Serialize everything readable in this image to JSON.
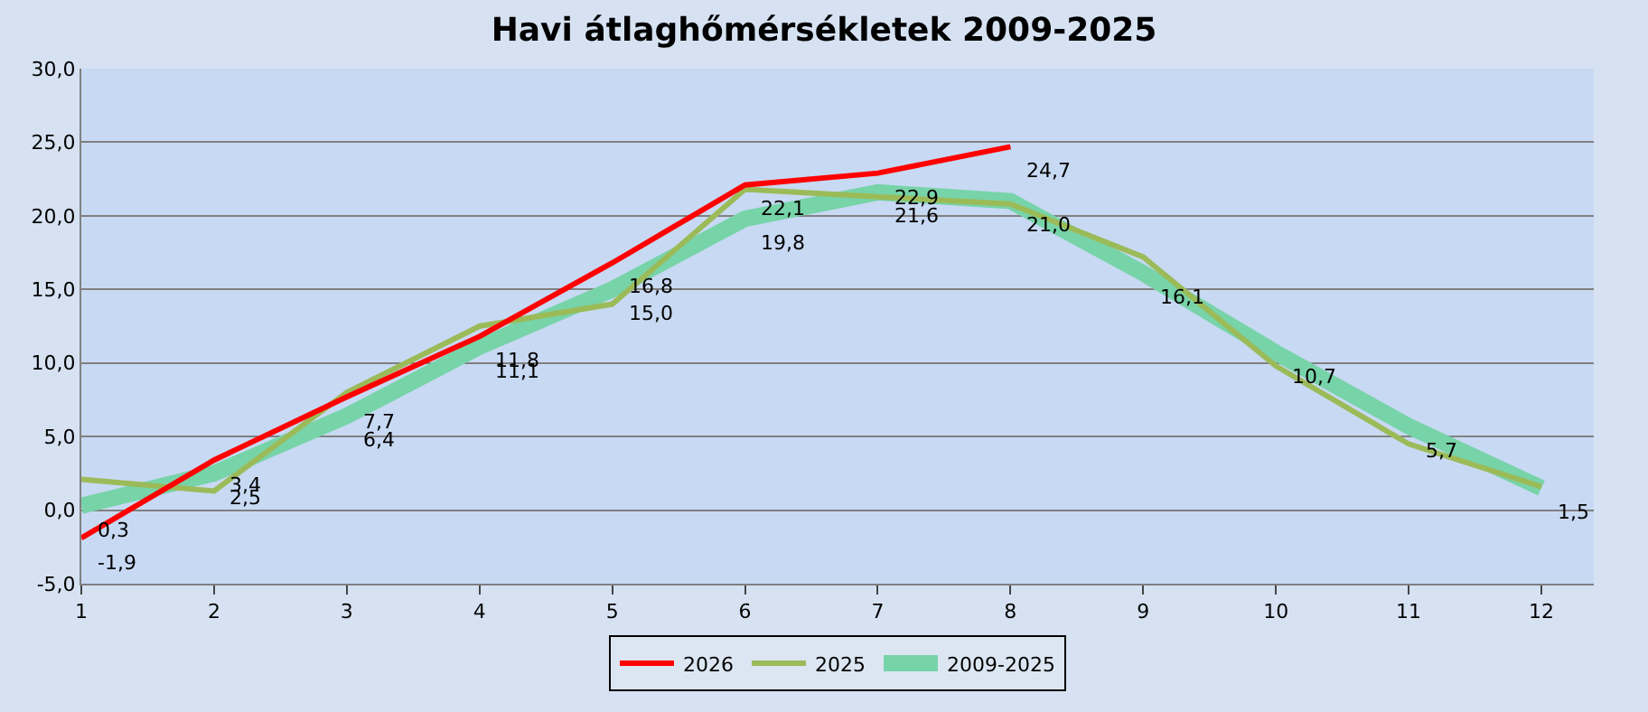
{
  "chart_data": {
    "type": "line",
    "title": "Havi átlaghőmérsékletek 2009-2025",
    "categories": [
      "1",
      "2",
      "3",
      "4",
      "5",
      "6",
      "7",
      "8",
      "9",
      "10",
      "11",
      "12"
    ],
    "series": [
      {
        "name": "2026",
        "color": "#ff0000",
        "values": [
          -1.9,
          3.4,
          7.7,
          11.8,
          16.8,
          22.1,
          22.9,
          24.7,
          null,
          null,
          null,
          null
        ],
        "value_labels": [
          "-1,9",
          "3,4",
          "7,7",
          "11,8",
          "16,8",
          "22,1",
          "22,9",
          "24,7",
          null,
          null,
          null,
          null
        ]
      },
      {
        "name": "2025",
        "color": "#9bbb59",
        "values": [
          2.1,
          1.3,
          8.0,
          12.5,
          14.0,
          21.8,
          21.3,
          20.8,
          17.2,
          9.8,
          4.5,
          1.6
        ]
      },
      {
        "name": "2009-2025",
        "color": "#77d3a8",
        "values": [
          0.3,
          2.5,
          6.4,
          11.1,
          15.0,
          19.8,
          21.6,
          21.0,
          16.1,
          10.7,
          5.7,
          1.5
        ],
        "value_labels": [
          "0,3",
          "2,5",
          "6,4",
          "11,1",
          "15,0",
          "19,8",
          "21,6",
          "21,0",
          "16,1",
          "10,7",
          "5,7",
          "1,5"
        ]
      }
    ],
    "ylim": [
      -5,
      30
    ],
    "yticks": [
      {
        "value": -5,
        "label": "-5,0"
      },
      {
        "value": 0,
        "label": "0,0"
      },
      {
        "value": 5,
        "label": "5,0"
      },
      {
        "value": 10,
        "label": "10,0"
      },
      {
        "value": 15,
        "label": "15,0"
      },
      {
        "value": 20,
        "label": "20,0"
      },
      {
        "value": 25,
        "label": "25,0"
      },
      {
        "value": 30,
        "label": "30,0"
      }
    ],
    "grid": "y",
    "legend": "bottom",
    "marker": "none",
    "line_style": "solid"
  }
}
